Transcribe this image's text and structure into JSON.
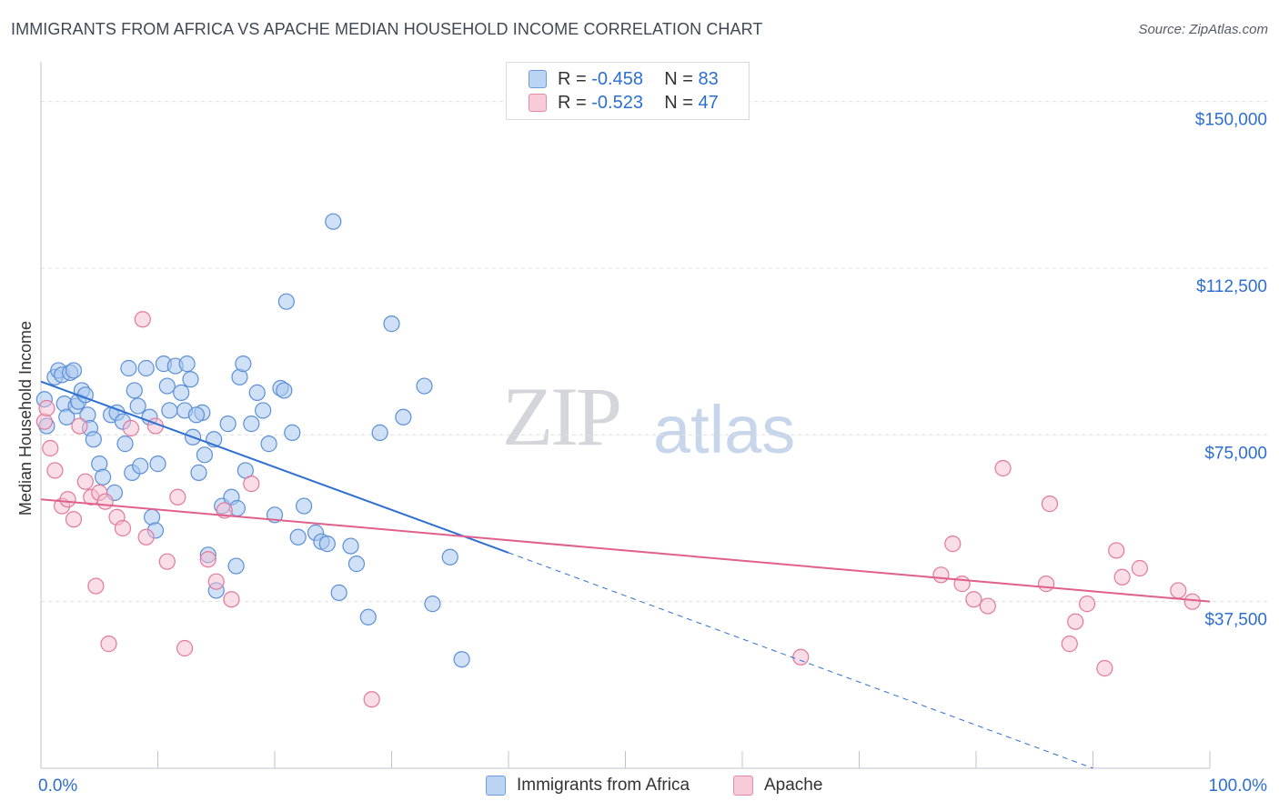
{
  "title": "IMMIGRANTS FROM AFRICA VS APACHE MEDIAN HOUSEHOLD INCOME CORRELATION CHART",
  "source": "Source: ZipAtlas.com",
  "watermark": {
    "zip": "ZIP",
    "atlas": "atlas"
  },
  "legend": {
    "series1": {
      "r_label": "R =",
      "r_value": "-0.458",
      "n_label": "N =",
      "n_value": "83"
    },
    "series2": {
      "r_label": "R =",
      "r_value": "-0.523",
      "n_label": "N =",
      "n_value": "47"
    }
  },
  "colors": {
    "africa_fill": "#a9c8f0",
    "africa_stroke": "#5b8fd6",
    "africa_line": "#2d6fd1",
    "apache_fill": "#f6bdd0",
    "apache_stroke": "#e3789c",
    "apache_line": "#e0608c",
    "axis_text": "#2d6fd1",
    "grid": "#dde0e4"
  },
  "chart_data": {
    "type": "scatter",
    "xlabel": "",
    "ylabel": "Median Household Income",
    "xlim": [
      0,
      100
    ],
    "ylim": [
      0,
      157500
    ],
    "x_tick_labels": [
      {
        "value": 0,
        "label": "0.0%"
      },
      {
        "value": 100,
        "label": "100.0%"
      }
    ],
    "y_ticks": [
      {
        "value": 37500,
        "label": "$37,500"
      },
      {
        "value": 75000,
        "label": "$75,000"
      },
      {
        "value": 112500,
        "label": "$112,500"
      },
      {
        "value": 150000,
        "label": "$150,000"
      }
    ],
    "grid": true,
    "legend_position": "top-center",
    "series": [
      {
        "name": "Immigrants from Africa",
        "r": -0.458,
        "n": 83,
        "trend": {
          "x0": 0,
          "y0": 87000,
          "x1": 40,
          "y1": 48500,
          "dash_to_x": 90,
          "dash_to_y": 0
        },
        "points": [
          [
            0.3,
            83000
          ],
          [
            0.5,
            77000
          ],
          [
            1.2,
            88000
          ],
          [
            1.5,
            89500
          ],
          [
            1.8,
            88500
          ],
          [
            2.0,
            82000
          ],
          [
            2.2,
            79000
          ],
          [
            2.5,
            89000
          ],
          [
            2.8,
            89500
          ],
          [
            3.0,
            81500
          ],
          [
            3.2,
            82500
          ],
          [
            3.5,
            85000
          ],
          [
            3.8,
            84000
          ],
          [
            4.0,
            79500
          ],
          [
            4.2,
            76500
          ],
          [
            4.5,
            74000
          ],
          [
            5.0,
            68500
          ],
          [
            5.3,
            65500
          ],
          [
            6.0,
            79500
          ],
          [
            6.3,
            62000
          ],
          [
            6.5,
            80000
          ],
          [
            7.0,
            78000
          ],
          [
            7.2,
            73000
          ],
          [
            7.5,
            90000
          ],
          [
            7.8,
            66500
          ],
          [
            8.0,
            85000
          ],
          [
            8.3,
            81500
          ],
          [
            8.5,
            68000
          ],
          [
            9.0,
            90000
          ],
          [
            9.3,
            79000
          ],
          [
            9.5,
            56500
          ],
          [
            10.0,
            68500
          ],
          [
            10.5,
            91000
          ],
          [
            10.8,
            86000
          ],
          [
            11.0,
            80500
          ],
          [
            11.5,
            90500
          ],
          [
            12.0,
            84500
          ],
          [
            12.3,
            80500
          ],
          [
            12.5,
            91000
          ],
          [
            12.8,
            87500
          ],
          [
            13.0,
            74500
          ],
          [
            13.5,
            66500
          ],
          [
            13.8,
            80000
          ],
          [
            14.0,
            70500
          ],
          [
            14.3,
            48000
          ],
          [
            14.8,
            74000
          ],
          [
            15.0,
            40000
          ],
          [
            15.5,
            59000
          ],
          [
            16.0,
            77500
          ],
          [
            16.3,
            61000
          ],
          [
            16.7,
            45500
          ],
          [
            17.0,
            88000
          ],
          [
            17.3,
            91000
          ],
          [
            17.5,
            67000
          ],
          [
            18.0,
            77500
          ],
          [
            18.5,
            84500
          ],
          [
            19.0,
            80500
          ],
          [
            19.5,
            73000
          ],
          [
            20.0,
            57000
          ],
          [
            20.5,
            85500
          ],
          [
            21.0,
            105000
          ],
          [
            21.5,
            75500
          ],
          [
            22.0,
            52000
          ],
          [
            22.5,
            59000
          ],
          [
            23.5,
            53000
          ],
          [
            24.0,
            51000
          ],
          [
            24.5,
            50500
          ],
          [
            25.0,
            123000
          ],
          [
            25.5,
            39500
          ],
          [
            26.5,
            50000
          ],
          [
            27.0,
            46000
          ],
          [
            28.0,
            34000
          ],
          [
            29.0,
            75500
          ],
          [
            30.0,
            100000
          ],
          [
            31.0,
            79000
          ],
          [
            32.8,
            86000
          ],
          [
            33.5,
            37000
          ],
          [
            35.0,
            47500
          ],
          [
            36.0,
            24500
          ],
          [
            13.3,
            79500
          ],
          [
            20.8,
            85000
          ],
          [
            16.8,
            58500
          ],
          [
            9.8,
            53500
          ]
        ]
      },
      {
        "name": "Apache",
        "r": -0.523,
        "n": 47,
        "trend": {
          "x0": 0,
          "y0": 60500,
          "x1": 100,
          "y1": 37500
        },
        "points": [
          [
            0.3,
            78000
          ],
          [
            0.5,
            81000
          ],
          [
            0.8,
            72000
          ],
          [
            1.2,
            67000
          ],
          [
            1.8,
            59000
          ],
          [
            2.3,
            60500
          ],
          [
            2.8,
            56000
          ],
          [
            3.3,
            77000
          ],
          [
            3.8,
            64500
          ],
          [
            4.3,
            61000
          ],
          [
            4.7,
            41000
          ],
          [
            5.0,
            62000
          ],
          [
            5.5,
            60000
          ],
          [
            5.8,
            28000
          ],
          [
            6.5,
            56500
          ],
          [
            7.0,
            54000
          ],
          [
            7.7,
            76500
          ],
          [
            8.7,
            101000
          ],
          [
            9.0,
            52000
          ],
          [
            9.8,
            77000
          ],
          [
            10.8,
            46500
          ],
          [
            11.7,
            61000
          ],
          [
            12.3,
            27000
          ],
          [
            14.3,
            47000
          ],
          [
            15.0,
            42000
          ],
          [
            15.7,
            58000
          ],
          [
            16.3,
            38000
          ],
          [
            18.0,
            64000
          ],
          [
            28.3,
            15500
          ],
          [
            65.0,
            25000
          ],
          [
            77.0,
            43500
          ],
          [
            78.0,
            50500
          ],
          [
            78.8,
            41500
          ],
          [
            79.8,
            38000
          ],
          [
            81.0,
            36500
          ],
          [
            82.3,
            67500
          ],
          [
            86.0,
            41500
          ],
          [
            86.3,
            59500
          ],
          [
            88.0,
            28000
          ],
          [
            88.5,
            33000
          ],
          [
            89.5,
            37000
          ],
          [
            91.0,
            22500
          ],
          [
            92.0,
            49000
          ],
          [
            92.5,
            43000
          ],
          [
            94.0,
            45000
          ],
          [
            97.3,
            40000
          ],
          [
            98.5,
            37500
          ]
        ]
      }
    ]
  },
  "bottom_legend": {
    "africa": "Immigrants from Africa",
    "apache": "Apache"
  }
}
